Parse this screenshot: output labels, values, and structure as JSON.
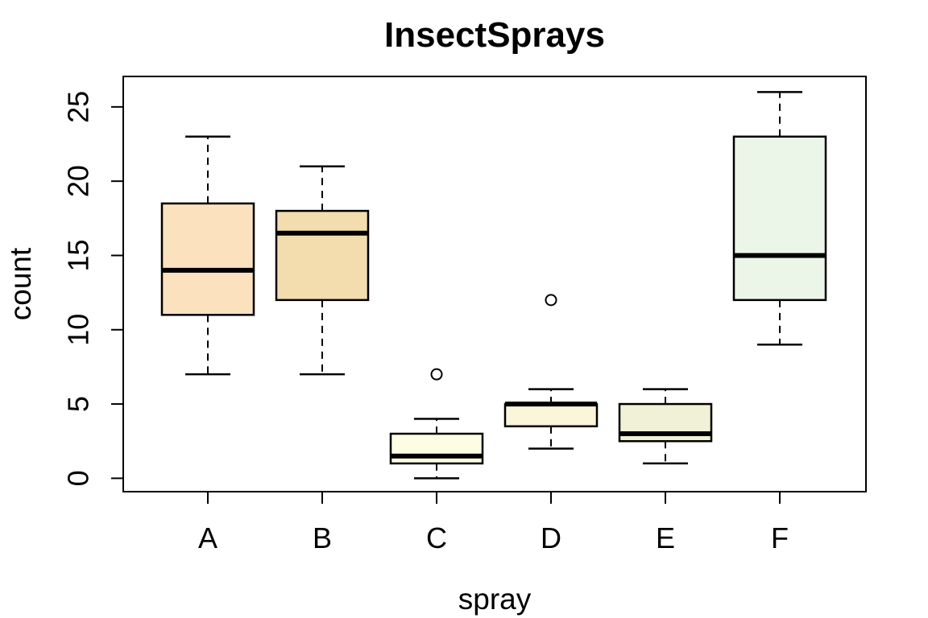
{
  "chart_data": {
    "type": "boxplot",
    "title": "InsectSprays",
    "xlabel": "spray",
    "ylabel": "count",
    "categories": [
      "A",
      "B",
      "C",
      "D",
      "E",
      "F"
    ],
    "y_ticks": [
      0,
      5,
      10,
      15,
      20,
      25
    ],
    "ylim": [
      -0.9,
      27.05
    ],
    "grid": false,
    "legend": false,
    "background": "#FFFFFF",
    "stroke_color": "#000000",
    "boxes": [
      {
        "category": "A",
        "whisker_low": 7,
        "q1": 11,
        "median": 14,
        "q3": 18.5,
        "whisker_high": 23,
        "outliers": [],
        "fill": "#FCE1BF"
      },
      {
        "category": "B",
        "whisker_low": 7,
        "q1": 12,
        "median": 16.5,
        "q3": 18,
        "whisker_high": 21,
        "outliers": [],
        "fill": "#F3DCAD"
      },
      {
        "category": "C",
        "whisker_low": 0,
        "q1": 1,
        "median": 1.5,
        "q3": 3,
        "whisker_high": 4,
        "outliers": [
          7
        ],
        "fill": "#FDFDE4"
      },
      {
        "category": "D",
        "whisker_low": 2,
        "q1": 3.5,
        "median": 5,
        "q3": 5,
        "whisker_high": 6,
        "outliers": [
          12
        ],
        "fill": "#FBF5DA"
      },
      {
        "category": "E",
        "whisker_low": 1,
        "q1": 2.5,
        "median": 3,
        "q3": 5,
        "whisker_high": 6,
        "outliers": [],
        "fill": "#F1F1D8"
      },
      {
        "category": "F",
        "whisker_low": 9,
        "q1": 12,
        "median": 15,
        "q3": 23,
        "whisker_high": 26,
        "outliers": [],
        "fill": "#EBF6E8"
      }
    ]
  }
}
